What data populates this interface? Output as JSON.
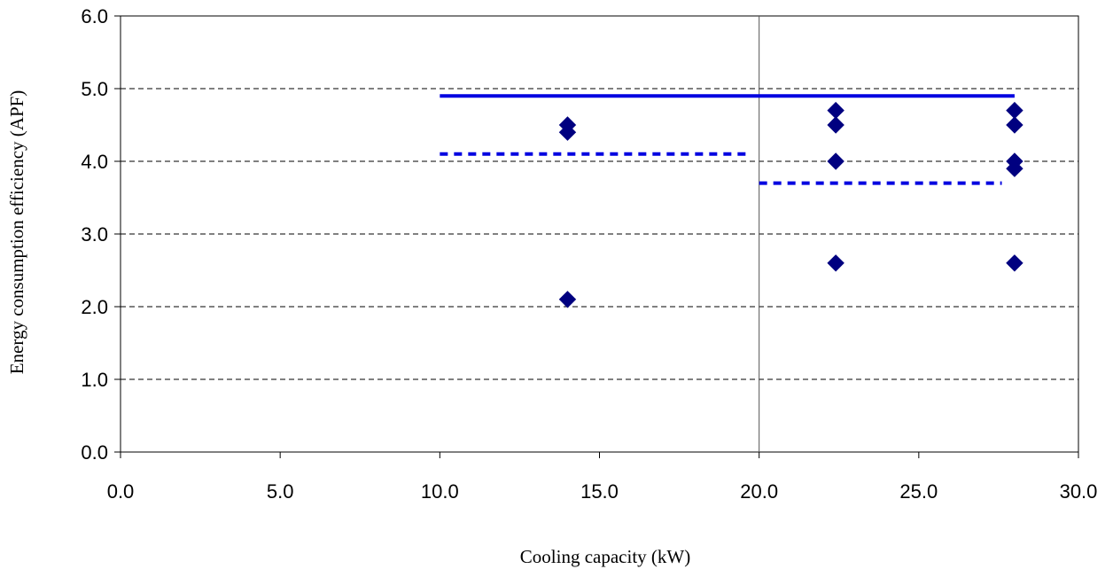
{
  "chart_data": {
    "type": "scatter",
    "title": "",
    "xlabel": "Cooling capacity (kW)",
    "ylabel": "Energy consumption efficiency (APF)",
    "xlim": [
      0,
      30
    ],
    "ylim": [
      0,
      6
    ],
    "x_ticks": [
      "0.0",
      "5.0",
      "10.0",
      "15.0",
      "20.0",
      "25.0",
      "30.0"
    ],
    "y_ticks": [
      "0.0",
      "1.0",
      "2.0",
      "3.0",
      "4.0",
      "5.0",
      "6.0"
    ],
    "grid": "horizontal dashed",
    "vertical_divider_x": 20,
    "series": [
      {
        "marker": "diamond",
        "color": "#000080",
        "points": [
          {
            "x": 14.0,
            "y": 4.5
          },
          {
            "x": 14.0,
            "y": 4.4
          },
          {
            "x": 14.0,
            "y": 2.1
          },
          {
            "x": 22.4,
            "y": 4.7
          },
          {
            "x": 22.4,
            "y": 4.5
          },
          {
            "x": 22.4,
            "y": 4.0
          },
          {
            "x": 22.4,
            "y": 2.6
          },
          {
            "x": 28.0,
            "y": 4.7
          },
          {
            "x": 28.0,
            "y": 4.5
          },
          {
            "x": 28.0,
            "y": 4.0
          },
          {
            "x": 28.0,
            "y": 3.9
          },
          {
            "x": 28.0,
            "y": 2.6
          }
        ]
      }
    ],
    "reference_lines": [
      {
        "style": "solid",
        "color": "#0000e0",
        "x_start": 10.0,
        "x_end": 28.0,
        "y": 4.9
      },
      {
        "style": "dotted",
        "color": "#0000e0",
        "x_start": 10.0,
        "x_end": 19.6,
        "y": 4.1
      },
      {
        "style": "dotted",
        "color": "#0000e0",
        "x_start": 20.0,
        "x_end": 27.6,
        "y": 3.7
      }
    ]
  }
}
